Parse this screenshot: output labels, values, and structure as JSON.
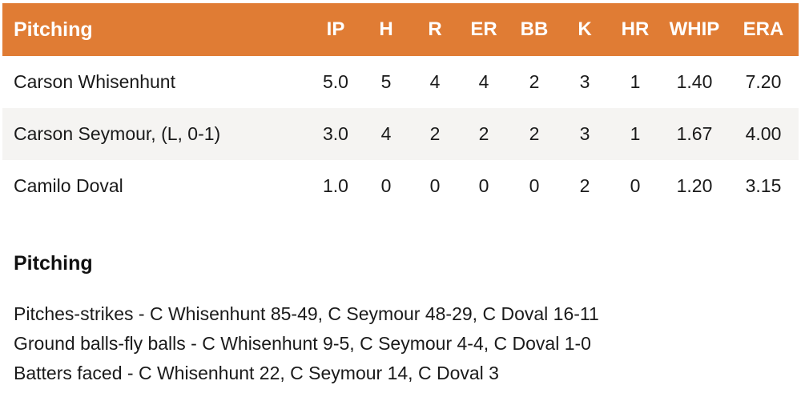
{
  "table": {
    "header": {
      "label": "Pitching",
      "columns": [
        "IP",
        "H",
        "R",
        "ER",
        "BB",
        "K",
        "HR",
        "WHIP",
        "ERA"
      ]
    },
    "rows": [
      {
        "name": "Carson Whisenhunt",
        "stats": [
          "5.0",
          "5",
          "4",
          "4",
          "2",
          "3",
          "1",
          "1.40",
          "7.20"
        ]
      },
      {
        "name": "Carson Seymour, (L, 0-1)",
        "stats": [
          "3.0",
          "4",
          "2",
          "2",
          "2",
          "3",
          "1",
          "1.67",
          "4.00"
        ]
      },
      {
        "name": "Camilo Doval",
        "stats": [
          "1.0",
          "0",
          "0",
          "0",
          "0",
          "2",
          "0",
          "1.20",
          "3.15"
        ]
      }
    ]
  },
  "notes": {
    "heading": "Pitching",
    "lines": [
      "Pitches-strikes - C Whisenhunt 85-49, C Seymour 48-29, C Doval 16-11",
      "Ground balls-fly balls - C Whisenhunt 9-5, C Seymour 4-4, C Doval 1-0",
      "Batters faced - C Whisenhunt 22, C Seymour 14, C Doval 3"
    ]
  },
  "colors": {
    "header_bg": "#E07C34",
    "header_text": "#FFFFFF",
    "row_alt_bg": "#F5F4F2",
    "text": "#1A1A1A"
  }
}
